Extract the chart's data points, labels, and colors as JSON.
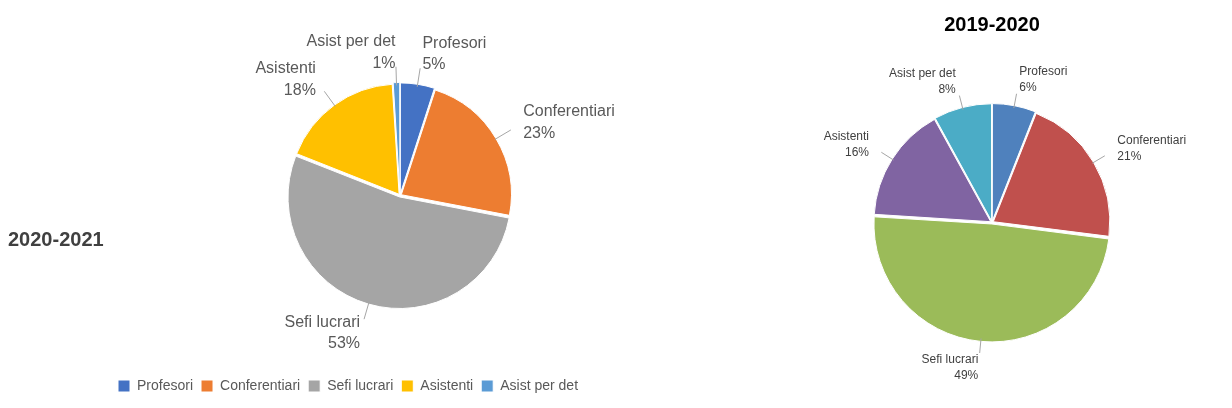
{
  "chart_data": [
    {
      "type": "pie",
      "title": "2020-2021",
      "categories": [
        "Profesori",
        "Conferentiari",
        "Sefi lucrari",
        "Asistenti",
        "Asist per det"
      ],
      "values": [
        5,
        23,
        53,
        18,
        1
      ],
      "value_labels": [
        "5%",
        "23%",
        "53%",
        "18%",
        "1%"
      ],
      "colors": [
        "#4472c4",
        "#ed7d31",
        "#a5a5a5",
        "#ffc000",
        "#5b9bd5"
      ],
      "legend": "bottom"
    },
    {
      "type": "pie",
      "title": "2019-2020",
      "categories": [
        "Profesori",
        "Conferentiari",
        "Sefi lucrari",
        "Asistenti",
        "Asist per det"
      ],
      "values": [
        6,
        21,
        49,
        16,
        8
      ],
      "value_labels": [
        "6%",
        "21%",
        "49%",
        "16%",
        "8%"
      ],
      "colors": [
        "#4f81bd",
        "#c0504d",
        "#9bbb59",
        "#8064a2",
        "#4bacc6"
      ]
    }
  ]
}
